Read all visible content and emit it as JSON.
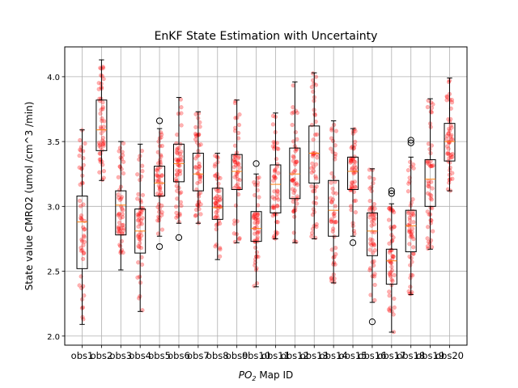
{
  "chart_data": {
    "type": "box",
    "title": "EnKF State Estimation with Uncertainty",
    "xlabel_parts": [
      "PO",
      "2",
      " Map ID"
    ],
    "ylabel": "State value CMRO2 (umol /cm^3 /min)",
    "ylim": [
      1.93,
      4.23
    ],
    "yticks": [
      "2.0",
      "2.5",
      "3.0",
      "3.5",
      "4.0"
    ],
    "grid": true,
    "colors": {
      "box": "#000000",
      "median": "#ff7f0e",
      "points": "#ff0000",
      "grid": "#b0b0b0",
      "flier_edge": "#000000"
    },
    "categories": [
      "obs1",
      "obs2",
      "obs3",
      "obs4",
      "obs5",
      "obs6",
      "obs7",
      "obs8",
      "obs9",
      "obs10",
      "obs11",
      "obs12",
      "obs13",
      "obs14",
      "obs15",
      "obs16",
      "obs17",
      "obs18",
      "obs19",
      "obs20"
    ],
    "boxes": [
      {
        "whislo": 2.09,
        "q1": 2.52,
        "med": 2.88,
        "q3": 3.08,
        "whishi": 3.59,
        "fliers": []
      },
      {
        "whislo": 3.2,
        "q1": 3.43,
        "med": 3.59,
        "q3": 3.82,
        "whishi": 4.13,
        "fliers": []
      },
      {
        "whislo": 2.51,
        "q1": 2.78,
        "med": 3.01,
        "q3": 3.12,
        "whishi": 3.5,
        "fliers": []
      },
      {
        "whislo": 2.19,
        "q1": 2.64,
        "med": 2.81,
        "q3": 2.98,
        "whishi": 3.48,
        "fliers": []
      },
      {
        "whislo": 2.77,
        "q1": 3.08,
        "med": 3.18,
        "q3": 3.31,
        "whishi": 3.6,
        "fliers": [
          3.66,
          2.69
        ]
      },
      {
        "whislo": 2.87,
        "q1": 3.19,
        "med": 3.33,
        "q3": 3.48,
        "whishi": 3.84,
        "fliers": [
          2.76
        ]
      },
      {
        "whislo": 2.87,
        "q1": 3.12,
        "med": 3.25,
        "q3": 3.41,
        "whishi": 3.73,
        "fliers": []
      },
      {
        "whislo": 2.59,
        "q1": 2.9,
        "med": 2.99,
        "q3": 3.14,
        "whishi": 3.41,
        "fliers": []
      },
      {
        "whislo": 2.72,
        "q1": 3.13,
        "med": 3.27,
        "q3": 3.4,
        "whishi": 3.82,
        "fliers": []
      },
      {
        "whislo": 2.38,
        "q1": 2.73,
        "med": 2.83,
        "q3": 2.96,
        "whishi": 3.25,
        "fliers": [
          3.33
        ]
      },
      {
        "whislo": 2.75,
        "q1": 2.95,
        "med": 3.17,
        "q3": 3.32,
        "whishi": 3.72,
        "fliers": []
      },
      {
        "whislo": 2.72,
        "q1": 3.06,
        "med": 3.25,
        "q3": 3.45,
        "whishi": 3.96,
        "fliers": []
      },
      {
        "whislo": 2.75,
        "q1": 3.18,
        "med": 3.41,
        "q3": 3.62,
        "whishi": 4.03,
        "fliers": []
      },
      {
        "whislo": 2.41,
        "q1": 2.77,
        "med": 2.97,
        "q3": 3.2,
        "whishi": 3.66,
        "fliers": []
      },
      {
        "whislo": 2.77,
        "q1": 3.13,
        "med": 3.27,
        "q3": 3.38,
        "whishi": 3.6,
        "fliers": [
          2.72
        ]
      },
      {
        "whislo": 2.26,
        "q1": 2.62,
        "med": 2.81,
        "q3": 2.95,
        "whishi": 3.29,
        "fliers": [
          2.11
        ]
      },
      {
        "whislo": 2.03,
        "q1": 2.4,
        "med": 2.58,
        "q3": 2.67,
        "whishi": 3.02,
        "fliers": [
          3.1,
          3.12
        ]
      },
      {
        "whislo": 2.32,
        "q1": 2.65,
        "med": 2.85,
        "q3": 2.97,
        "whishi": 3.38,
        "fliers": [
          3.49,
          3.51
        ]
      },
      {
        "whislo": 2.67,
        "q1": 3.0,
        "med": 3.21,
        "q3": 3.36,
        "whishi": 3.83,
        "fliers": []
      },
      {
        "whislo": 3.12,
        "q1": 3.35,
        "med": 3.5,
        "q3": 3.64,
        "whishi": 3.99,
        "fliers": []
      }
    ]
  }
}
